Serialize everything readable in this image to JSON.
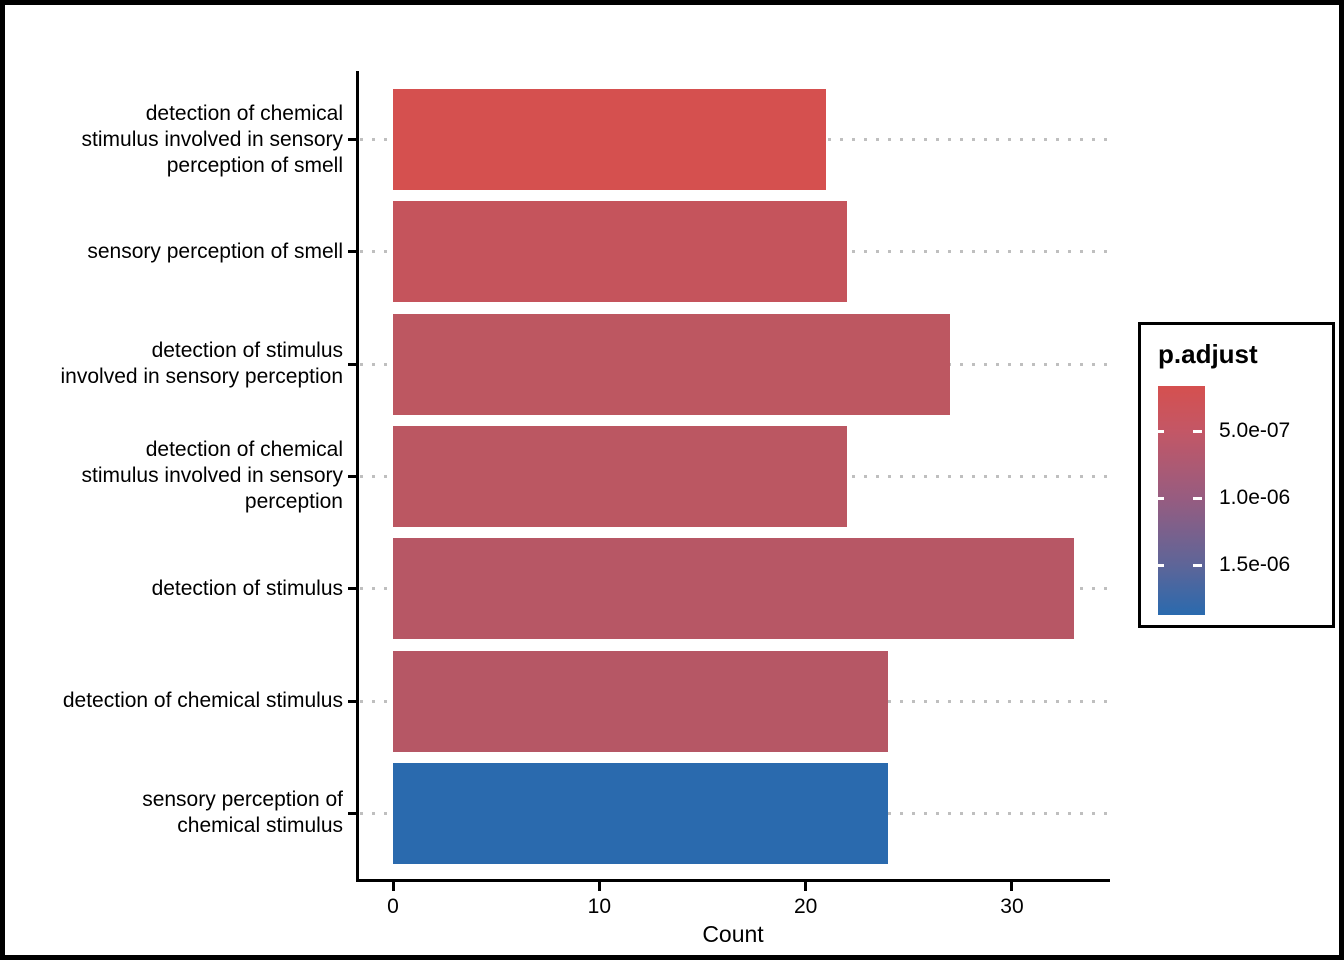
{
  "chart_data": {
    "type": "bar",
    "orientation": "horizontal",
    "title": "",
    "xlabel": "Count",
    "ylabel": "",
    "categories": [
      "detection of chemical stimulus involved in sensory perception of smell",
      "sensory perception of smell",
      "detection of stimulus involved in sensory perception",
      "detection of chemical stimulus involved in sensory perception",
      "detection of stimulus",
      "detection of chemical stimulus",
      "sensory perception of chemical stimulus"
    ],
    "category_label_lines": [
      [
        "detection of chemical",
        "stimulus involved in sensory",
        "perception of smell"
      ],
      [
        "sensory perception of smell"
      ],
      [
        "detection of stimulus",
        "involved in sensory perception"
      ],
      [
        "detection of chemical",
        "stimulus involved in sensory",
        "perception"
      ],
      [
        "detection of stimulus"
      ],
      [
        "detection of chemical stimulus"
      ],
      [
        "sensory perception of",
        "chemical stimulus"
      ]
    ],
    "values": [
      21,
      22,
      27,
      22,
      33,
      24,
      24
    ],
    "bar_colors": [
      "#d5504f",
      "#c5545c",
      "#bd5761",
      "#bb5762",
      "#b75765",
      "#b65765",
      "#2a6aae"
    ],
    "x_ticks": [
      0,
      10,
      20,
      30
    ],
    "xlim": [
      0,
      34.65
    ],
    "grid": "dotted gray line per category, full panel width",
    "legend": {
      "title": "p.adjust",
      "position": "right",
      "tick_labels": [
        "5.0e-07",
        "1.0e-06",
        "1.5e-06"
      ],
      "gradient_top_color": "#d5504f",
      "gradient_bottom_color": "#2a6aae",
      "gradient_mid_colors": [
        "#c35766",
        "#975c80",
        "#5e6598"
      ],
      "tick_mark_color": "#ffffff"
    }
  }
}
